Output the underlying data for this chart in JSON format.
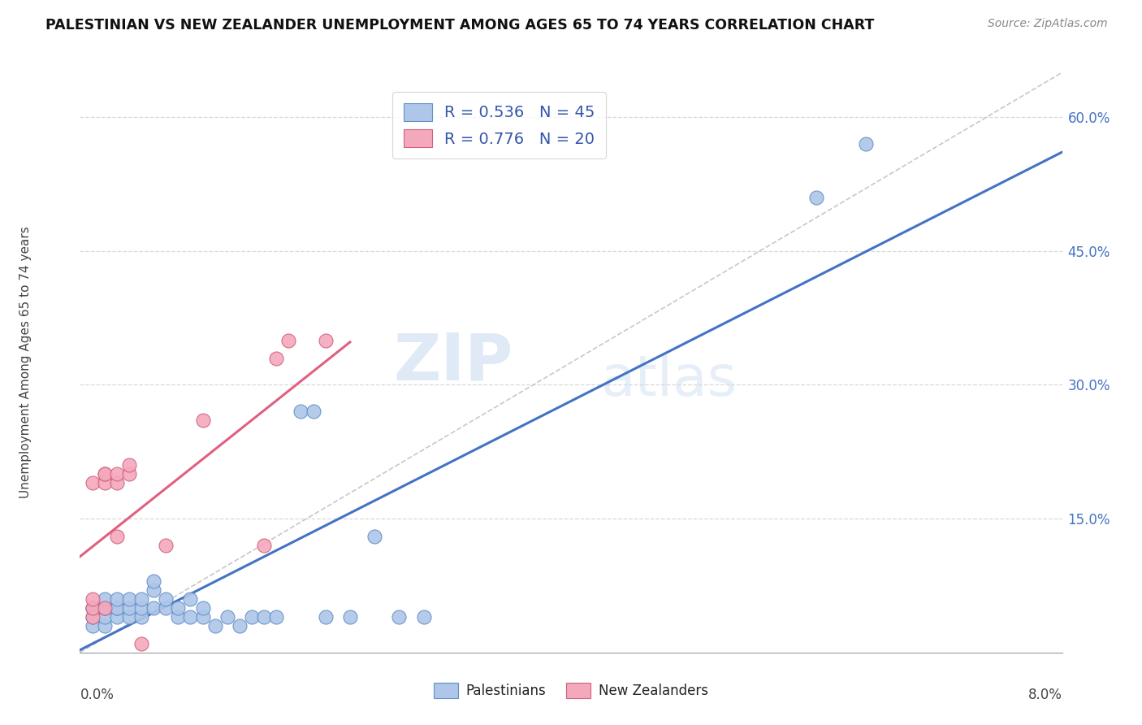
{
  "title": "PALESTINIAN VS NEW ZEALANDER UNEMPLOYMENT AMONG AGES 65 TO 74 YEARS CORRELATION CHART",
  "source": "Source: ZipAtlas.com",
  "ylabel": "Unemployment Among Ages 65 to 74 years",
  "watermark_zip": "ZIP",
  "watermark_atlas": "atlas",
  "legend": {
    "blue_label": "R = 0.536   N = 45",
    "pink_label": "R = 0.776   N = 20",
    "bottom_blue": "Palestinians",
    "bottom_pink": "New Zealanders"
  },
  "xlim": [
    0.0,
    0.08
  ],
  "ylim": [
    0.0,
    0.65
  ],
  "yticks": [
    0.15,
    0.3,
    0.45,
    0.6
  ],
  "blue_scatter": [
    [
      0.001,
      0.03
    ],
    [
      0.001,
      0.04
    ],
    [
      0.001,
      0.05
    ],
    [
      0.001,
      0.05
    ],
    [
      0.002,
      0.03
    ],
    [
      0.002,
      0.04
    ],
    [
      0.002,
      0.05
    ],
    [
      0.002,
      0.05
    ],
    [
      0.002,
      0.06
    ],
    [
      0.003,
      0.04
    ],
    [
      0.003,
      0.05
    ],
    [
      0.003,
      0.05
    ],
    [
      0.003,
      0.06
    ],
    [
      0.004,
      0.04
    ],
    [
      0.004,
      0.05
    ],
    [
      0.004,
      0.06
    ],
    [
      0.005,
      0.04
    ],
    [
      0.005,
      0.05
    ],
    [
      0.005,
      0.06
    ],
    [
      0.006,
      0.05
    ],
    [
      0.006,
      0.07
    ],
    [
      0.006,
      0.08
    ],
    [
      0.007,
      0.05
    ],
    [
      0.007,
      0.06
    ],
    [
      0.008,
      0.04
    ],
    [
      0.008,
      0.05
    ],
    [
      0.009,
      0.04
    ],
    [
      0.009,
      0.06
    ],
    [
      0.01,
      0.04
    ],
    [
      0.01,
      0.05
    ],
    [
      0.011,
      0.03
    ],
    [
      0.012,
      0.04
    ],
    [
      0.013,
      0.03
    ],
    [
      0.014,
      0.04
    ],
    [
      0.015,
      0.04
    ],
    [
      0.016,
      0.04
    ],
    [
      0.018,
      0.27
    ],
    [
      0.019,
      0.27
    ],
    [
      0.02,
      0.04
    ],
    [
      0.022,
      0.04
    ],
    [
      0.024,
      0.13
    ],
    [
      0.026,
      0.04
    ],
    [
      0.028,
      0.04
    ],
    [
      0.06,
      0.51
    ],
    [
      0.064,
      0.57
    ]
  ],
  "pink_scatter": [
    [
      0.001,
      0.04
    ],
    [
      0.001,
      0.05
    ],
    [
      0.001,
      0.06
    ],
    [
      0.001,
      0.19
    ],
    [
      0.002,
      0.05
    ],
    [
      0.002,
      0.19
    ],
    [
      0.002,
      0.2
    ],
    [
      0.002,
      0.2
    ],
    [
      0.003,
      0.13
    ],
    [
      0.003,
      0.19
    ],
    [
      0.003,
      0.2
    ],
    [
      0.004,
      0.2
    ],
    [
      0.004,
      0.21
    ],
    [
      0.005,
      0.01
    ],
    [
      0.007,
      0.12
    ],
    [
      0.01,
      0.26
    ],
    [
      0.015,
      0.12
    ],
    [
      0.016,
      0.33
    ],
    [
      0.017,
      0.35
    ],
    [
      0.02,
      0.35
    ]
  ],
  "blue_line_color": "#4472c4",
  "pink_line_color": "#e06080",
  "blue_scatter_facecolor": "#aec6e8",
  "blue_scatter_edgecolor": "#6090c8",
  "pink_scatter_facecolor": "#f4a8bc",
  "pink_scatter_edgecolor": "#d06080",
  "diagonal_color": "#c8c8c8",
  "grid_color": "#d8d8d8",
  "title_color": "#111111",
  "source_color": "#888888",
  "right_axis_color": "#4472c4"
}
